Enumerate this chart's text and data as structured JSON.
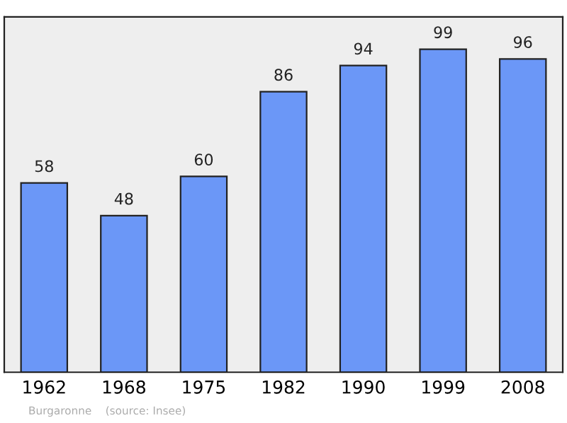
{
  "chart_data": {
    "type": "bar",
    "categories": [
      "1962",
      "1968",
      "1975",
      "1982",
      "1990",
      "1999",
      "2008"
    ],
    "values": [
      58,
      48,
      60,
      86,
      94,
      99,
      96
    ],
    "color": "#6b97f7",
    "data_labels": true,
    "grid": false,
    "annotations": [
      "Burgaronne    (source: Insee)"
    ]
  }
}
